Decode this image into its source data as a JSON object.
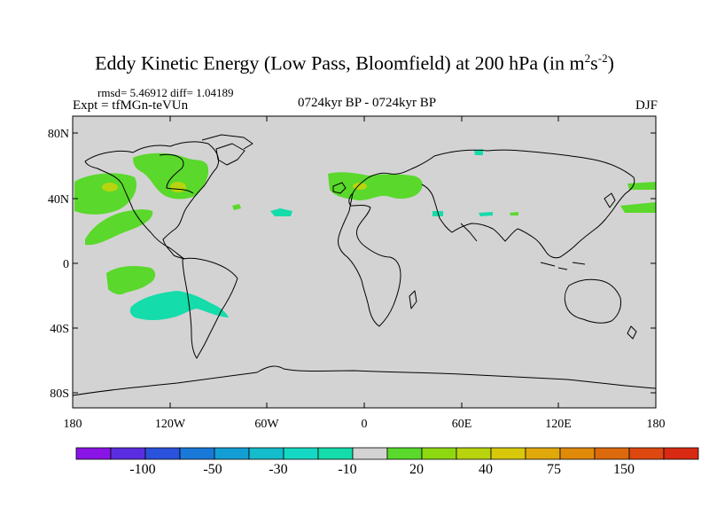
{
  "title": {
    "main": "Eddy Kinetic Energy (Low Pass, Bloomfield) at 200 hPa (in m",
    "sup1": "2",
    "mid": "s",
    "sup2": "-2",
    "end": ")"
  },
  "subtitle_left_top": "rmsd= 5.46912 diff= 1.04189",
  "subtitle_left": "Expt = tfMGn-teVUn",
  "subtitle_center": "0724kyr BP - 0724kyr BP",
  "subtitle_right": "DJF",
  "map": {
    "lat_ticks": [
      "80N",
      "40N",
      "0",
      "40S",
      "80S"
    ],
    "lon_ticks": [
      "180",
      "120W",
      "60W",
      "0",
      "60E",
      "120E",
      "180"
    ],
    "background_color": "#d3d3d3",
    "features": [
      {
        "region": "North Pacific",
        "level": "20",
        "color": "#5ad82c"
      },
      {
        "region": "North America east",
        "level": "20",
        "color": "#5ad82c"
      },
      {
        "region": "Europe",
        "level": "20",
        "color": "#5ad82c"
      },
      {
        "region": "Southeast Pacific",
        "level": "-10",
        "color": "#14d8b8"
      }
    ]
  },
  "colorbar": {
    "labels": [
      "-100",
      "-50",
      "-30",
      "-10",
      "20",
      "40",
      "75",
      "150"
    ],
    "colors": [
      "#8a14e6",
      "#5a2ee0",
      "#2a52dc",
      "#1a78d8",
      "#129ed4",
      "#14bccc",
      "#14d8c4",
      "#14dcaa",
      "#d3d3d3",
      "#5ad82c",
      "#8ed812",
      "#b8d40e",
      "#d8c80a",
      "#e0a80a",
      "#e08a0a",
      "#dc6a0c",
      "#dc4810",
      "#d82a12"
    ]
  }
}
